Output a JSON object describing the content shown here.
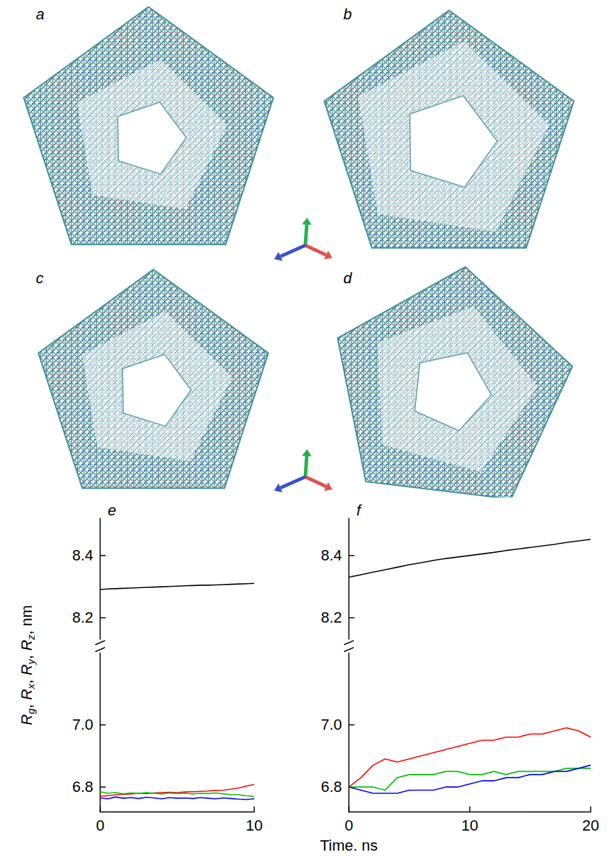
{
  "panels": [
    "a",
    "b",
    "c",
    "d"
  ],
  "figure": {
    "xlabel": "Time. ns",
    "ylabel": "Rg, Rx, Ry, Rz, nm"
  },
  "chart_data": [
    {
      "title": "e",
      "type": "line",
      "x": [
        0,
        0.5,
        1,
        1.5,
        2,
        2.5,
        3,
        3.5,
        4,
        4.5,
        5,
        5.5,
        6,
        6.5,
        7,
        7.5,
        8,
        8.5,
        9,
        9.5,
        10
      ],
      "series": [
        {
          "color": "#000000",
          "values": [
            8.29,
            8.292,
            8.293,
            8.294,
            8.295,
            8.296,
            8.297,
            8.298,
            8.299,
            8.3,
            8.301,
            8.302,
            8.303,
            8.304,
            8.304,
            8.305,
            8.306,
            8.307,
            8.308,
            8.309,
            8.31
          ]
        }
      ],
      "xlim": [
        0,
        10
      ],
      "xticks": [
        0,
        10
      ],
      "ylim": [
        8.13,
        8.52
      ],
      "yticks": [
        8.2,
        8.4
      ],
      "tick_labels": "y"
    },
    {
      "type": "line",
      "x": [
        0,
        0.5,
        1,
        1.5,
        2,
        2.5,
        3,
        3.5,
        4,
        4.5,
        5,
        5.5,
        6,
        6.5,
        7,
        7.5,
        8,
        8.5,
        9,
        9.5,
        10
      ],
      "series": [
        {
          "color": "#ff0000",
          "values": [
            6.77,
            6.772,
            6.775,
            6.776,
            6.778,
            6.78,
            6.779,
            6.781,
            6.782,
            6.783,
            6.782,
            6.784,
            6.785,
            6.786,
            6.787,
            6.789,
            6.79,
            6.793,
            6.797,
            6.803,
            6.808
          ]
        },
        {
          "color": "#00c000",
          "values": [
            6.785,
            6.78,
            6.782,
            6.778,
            6.781,
            6.779,
            6.782,
            6.78,
            6.778,
            6.781,
            6.779,
            6.78,
            6.778,
            6.78,
            6.779,
            6.781,
            6.778,
            6.776,
            6.775,
            6.772,
            6.77
          ]
        },
        {
          "color": "#0000ff",
          "values": [
            6.765,
            6.762,
            6.768,
            6.764,
            6.766,
            6.763,
            6.767,
            6.765,
            6.762,
            6.766,
            6.764,
            6.765,
            6.763,
            6.766,
            6.764,
            6.762,
            6.765,
            6.763,
            6.761,
            6.76,
            6.762
          ]
        }
      ],
      "xlim": [
        0,
        10
      ],
      "xticks": [
        0,
        10
      ],
      "ylim": [
        6.72,
        7.23
      ],
      "yticks": [
        6.8,
        {
          "value": 7,
          "label": "7.0"
        }
      ]
    },
    {
      "title": "f",
      "type": "line",
      "x": [
        0,
        1,
        2,
        3,
        4,
        5,
        6,
        7,
        8,
        9,
        10,
        11,
        12,
        13,
        14,
        15,
        16,
        17,
        18,
        19,
        20
      ],
      "series": [
        {
          "color": "#000000",
          "values": [
            8.33,
            8.338,
            8.346,
            8.354,
            8.362,
            8.37,
            8.377,
            8.384,
            8.39,
            8.395,
            8.4,
            8.405,
            8.41,
            8.416,
            8.421,
            8.426,
            8.431,
            8.436,
            8.442,
            8.447,
            8.452
          ]
        }
      ],
      "xlim": [
        0,
        20
      ],
      "xticks": [
        0,
        10,
        20
      ],
      "ylim": [
        8.13,
        8.52
      ],
      "yticks": [
        8.2,
        8.4
      ],
      "tick_labels": "y"
    },
    {
      "type": "line",
      "x": [
        0,
        1,
        2,
        3,
        4,
        5,
        6,
        7,
        8,
        9,
        10,
        11,
        12,
        13,
        14,
        15,
        16,
        17,
        18,
        19,
        20
      ],
      "series": [
        {
          "color": "#ff0000",
          "values": [
            6.8,
            6.83,
            6.87,
            6.89,
            6.88,
            6.89,
            6.9,
            6.91,
            6.92,
            6.93,
            6.94,
            6.95,
            6.95,
            6.96,
            6.96,
            6.97,
            6.97,
            6.98,
            6.99,
            6.98,
            6.96
          ]
        },
        {
          "color": "#00c000",
          "values": [
            6.8,
            6.8,
            6.8,
            6.79,
            6.83,
            6.84,
            6.84,
            6.84,
            6.85,
            6.85,
            6.84,
            6.84,
            6.85,
            6.84,
            6.85,
            6.85,
            6.85,
            6.85,
            6.86,
            6.86,
            6.86
          ]
        },
        {
          "color": "#0000ff",
          "values": [
            6.8,
            6.79,
            6.78,
            6.78,
            6.78,
            6.79,
            6.79,
            6.79,
            6.8,
            6.8,
            6.81,
            6.82,
            6.82,
            6.83,
            6.83,
            6.84,
            6.84,
            6.85,
            6.85,
            6.86,
            6.87
          ]
        }
      ],
      "xlim": [
        0,
        20
      ],
      "xticks": [
        0,
        10,
        20
      ],
      "ylim": [
        6.72,
        7.23
      ],
      "yticks": [
        6.8,
        {
          "value": 7,
          "label": "7.0"
        }
      ]
    }
  ]
}
